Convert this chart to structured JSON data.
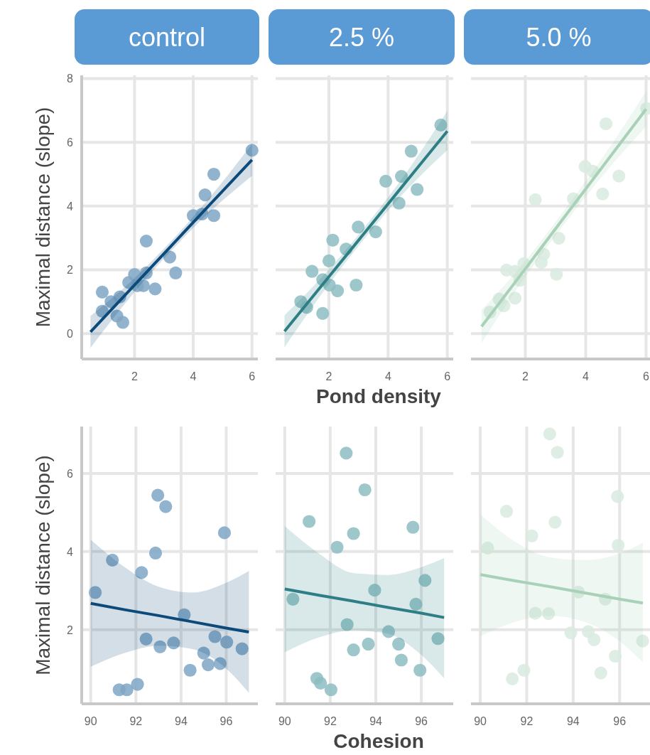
{
  "chart_data": [
    {
      "type": "scatter",
      "title": "control",
      "ylabel": "Maximal distance (slope)",
      "xlim": [
        0.2,
        6.2
      ],
      "ylim": [
        -0.8,
        8.1
      ],
      "xticks": [
        2,
        4,
        6
      ],
      "yticks": [
        0,
        2,
        4,
        6,
        8
      ],
      "grid": true,
      "series": [
        {
          "marker": "circle",
          "color": "#7fa6c4",
          "x": [
            0.9,
            0.9,
            1.2,
            1.5,
            1.4,
            1.6,
            1.8,
            2.0,
            2.1,
            2.3,
            2.4,
            2.4,
            2.7,
            3.2,
            3.4,
            4.0,
            4.3,
            4.4,
            4.7,
            4.7,
            6.0
          ],
          "values": [
            1.3,
            0.7,
            1.0,
            1.15,
            0.55,
            0.35,
            1.6,
            1.85,
            1.5,
            1.5,
            1.9,
            2.9,
            1.4,
            2.4,
            1.9,
            3.7,
            3.75,
            4.35,
            5.0,
            3.7,
            5.75
          ]
        },
        {
          "type": "line",
          "color": "#0b4a7a",
          "x": [
            0.5,
            2,
            3.25,
            4.5,
            6
          ],
          "values": [
            0.05,
            1.52,
            2.75,
            3.98,
            5.45
          ],
          "lower": [
            -0.45,
            1.3,
            2.6,
            3.76,
            4.95
          ],
          "upper": [
            0.55,
            1.74,
            2.9,
            4.2,
            5.95
          ]
        }
      ]
    },
    {
      "type": "scatter",
      "title": "2.5 %",
      "xlabel": "Pond density",
      "xlim": [
        0.2,
        6.2
      ],
      "ylim": [
        -0.8,
        8.1
      ],
      "xticks": [
        2,
        4,
        6
      ],
      "yticks": [
        0,
        2,
        4,
        6,
        8
      ],
      "tick_labels": "x",
      "grid": true,
      "series": [
        {
          "marker": "circle",
          "color": "#8dbdc2",
          "x": [
            1.05,
            1.25,
            1.43,
            1.79,
            1.79,
            2.0,
            2.02,
            2.13,
            2.29,
            2.58,
            2.92,
            2.99,
            3.58,
            3.92,
            4.37,
            4.45,
            4.78,
            4.98,
            5.78
          ],
          "values": [
            1.0,
            0.82,
            1.95,
            0.63,
            1.69,
            2.28,
            1.52,
            2.93,
            1.34,
            2.65,
            1.52,
            3.34,
            3.19,
            4.78,
            4.09,
            4.93,
            5.72,
            4.52,
            6.54
          ]
        },
        {
          "type": "line",
          "color": "#2e7f85",
          "x": [
            0.5,
            2,
            3.25,
            4.5,
            6
          ],
          "values": [
            0.07,
            1.78,
            3.21,
            4.64,
            6.35
          ],
          "lower": [
            -0.43,
            1.55,
            3.03,
            4.38,
            5.75
          ],
          "upper": [
            0.57,
            2.01,
            3.39,
            4.9,
            6.98
          ]
        }
      ]
    },
    {
      "type": "scatter",
      "title": "5.0 %",
      "xlim": [
        0.2,
        6.2
      ],
      "ylim": [
        -0.8,
        8.1
      ],
      "xticks": [
        2,
        4,
        6
      ],
      "yticks": [
        0,
        2,
        4,
        6,
        8
      ],
      "tick_labels": "x",
      "grid": true,
      "series": [
        {
          "marker": "circle",
          "color": "#d9ebe0",
          "x": [
            0.83,
            1.13,
            1.29,
            1.38,
            1.66,
            1.66,
            1.82,
            1.95,
            2.33,
            2.53,
            2.61,
            3.03,
            3.11,
            3.59,
            3.98,
            4.24,
            4.56,
            4.67,
            5.1,
            6.02
          ],
          "values": [
            0.67,
            1.08,
            0.87,
            1.99,
            1.11,
            1.95,
            1.67,
            2.19,
            4.2,
            2.23,
            2.49,
            1.86,
            2.99,
            4.23,
            5.24,
            5.09,
            4.38,
            6.58,
            4.94,
            7.06
          ]
        },
        {
          "type": "line",
          "color": "#a8d1b8",
          "x": [
            0.55,
            2,
            3.25,
            4.5,
            6
          ],
          "values": [
            0.22,
            2.03,
            3.6,
            5.16,
            7.04
          ],
          "lower": [
            -0.3,
            1.78,
            3.38,
            4.88,
            6.5
          ],
          "upper": [
            0.74,
            2.28,
            3.82,
            5.44,
            7.6
          ]
        }
      ]
    },
    {
      "type": "scatter",
      "ylabel": "Maximal distance (slope)",
      "xlim": [
        89.6,
        97.4
      ],
      "ylim": [
        0.1,
        7.2
      ],
      "xticks": [
        90,
        92,
        94,
        96
      ],
      "yticks": [
        2,
        4,
        6
      ],
      "grid": true,
      "series": [
        {
          "marker": "circle",
          "color": "#7fa6c4",
          "x": [
            90.2,
            90.96,
            91.26,
            91.6,
            92.07,
            92.25,
            92.45,
            92.87,
            92.97,
            93.07,
            93.32,
            93.67,
            94.14,
            94.4,
            95.0,
            95.2,
            95.5,
            95.73,
            95.92,
            96.02,
            96.7
          ],
          "values": [
            2.95,
            3.78,
            0.46,
            0.46,
            0.6,
            3.46,
            1.76,
            3.96,
            5.44,
            1.56,
            5.15,
            1.66,
            2.38,
            0.96,
            1.4,
            1.1,
            1.82,
            1.13,
            4.48,
            1.68,
            1.51
          ]
        },
        {
          "type": "line",
          "color": "#0b4a7a",
          "x": [
            90,
            91.5,
            93,
            94.5,
            96,
            97
          ],
          "values": [
            2.67,
            2.51,
            2.36,
            2.2,
            2.04,
            1.94
          ],
          "lower": [
            1.05,
            1.4,
            1.59,
            1.5,
            1.0,
            0.38
          ],
          "upper": [
            4.3,
            3.6,
            3.1,
            2.95,
            3.2,
            3.5
          ]
        }
      ]
    },
    {
      "type": "scatter",
      "xlabel": "Cohesion",
      "xlim": [
        89.6,
        97.4
      ],
      "ylim": [
        0.1,
        7.2
      ],
      "xticks": [
        90,
        92,
        94,
        96
      ],
      "yticks": [
        2,
        4,
        6
      ],
      "tick_labels": "x",
      "grid": true,
      "series": [
        {
          "marker": "circle",
          "color": "#8dbdc2",
          "x": [
            90.36,
            91.07,
            91.41,
            91.57,
            92.03,
            92.3,
            92.7,
            92.74,
            93.02,
            93.02,
            93.52,
            93.67,
            93.95,
            94.56,
            95.0,
            95.12,
            95.63,
            95.76,
            95.94,
            96.16,
            96.73
          ],
          "values": [
            2.78,
            4.77,
            0.75,
            0.63,
            0.46,
            4.11,
            6.52,
            2.13,
            4.46,
            1.48,
            5.58,
            1.63,
            3.01,
            1.95,
            1.63,
            1.22,
            4.62,
            2.65,
            0.96,
            3.26,
            1.77
          ]
        },
        {
          "type": "line",
          "color": "#2e7f85",
          "x": [
            90,
            91.5,
            93,
            94.5,
            96,
            97
          ],
          "values": [
            3.04,
            2.88,
            2.73,
            2.57,
            2.42,
            2.31
          ],
          "lower": [
            1.42,
            1.8,
            1.98,
            1.9,
            1.35,
            0.75
          ],
          "upper": [
            4.65,
            3.95,
            3.45,
            3.4,
            3.6,
            3.83
          ]
        }
      ]
    },
    {
      "type": "scatter",
      "xlim": [
        89.6,
        97.4
      ],
      "ylim": [
        0.1,
        7.2
      ],
      "xticks": [
        90,
        92,
        94,
        96
      ],
      "yticks": [
        2,
        4,
        6
      ],
      "tick_labels": "x",
      "grid": true,
      "series": [
        {
          "marker": "circle",
          "color": "#d9ebe0",
          "x": [
            90.32,
            91.13,
            91.38,
            91.88,
            92.22,
            92.37,
            92.94,
            92.99,
            93.22,
            93.32,
            93.9,
            94.23,
            94.65,
            94.9,
            95.19,
            95.38,
            95.81,
            95.91,
            95.94,
            96.99
          ],
          "values": [
            4.09,
            5.03,
            0.74,
            0.96,
            4.4,
            2.42,
            2.41,
            7.01,
            4.75,
            6.54,
            1.92,
            2.96,
            1.95,
            1.74,
            0.89,
            2.78,
            1.32,
            5.41,
            4.16,
            1.71
          ]
        },
        {
          "type": "line",
          "color": "#a8d1b8",
          "x": [
            90,
            91.5,
            93,
            94.5,
            96,
            97
          ],
          "values": [
            3.41,
            3.25,
            3.1,
            2.94,
            2.78,
            2.68
          ],
          "lower": [
            1.83,
            2.2,
            2.35,
            2.2,
            1.7,
            1.16
          ],
          "upper": [
            4.96,
            4.25,
            3.85,
            3.78,
            3.95,
            4.23
          ]
        }
      ]
    }
  ]
}
